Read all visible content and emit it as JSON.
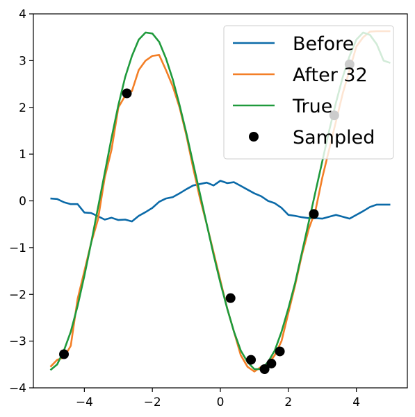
{
  "chart_data": {
    "type": "line",
    "xlim": [
      -5.5,
      5.5
    ],
    "ylim": [
      -4,
      4
    ],
    "xticks": [
      -4,
      -2,
      0,
      2,
      4
    ],
    "yticks": [
      -4,
      -3,
      -2,
      -1,
      0,
      1,
      2,
      3,
      4
    ],
    "xtick_labels": [
      "−4",
      "−2",
      "0",
      "2",
      "4"
    ],
    "ytick_labels": [
      "−4",
      "−3",
      "−2",
      "−1",
      "0",
      "1",
      "2",
      "3",
      "4"
    ],
    "legend_position": "upper-right",
    "grid": false,
    "series": [
      {
        "name": "Before",
        "color": "#0b6aa8",
        "kind": "line",
        "x": [
          -5.0,
          -4.8,
          -4.6,
          -4.4,
          -4.2,
          -4.0,
          -3.8,
          -3.6,
          -3.4,
          -3.2,
          -3.0,
          -2.8,
          -2.6,
          -2.4,
          -2.2,
          -2.0,
          -1.8,
          -1.6,
          -1.4,
          -1.2,
          -1.0,
          -0.8,
          -0.6,
          -0.4,
          -0.2,
          0.0,
          0.2,
          0.4,
          0.6,
          0.8,
          1.0,
          1.2,
          1.4,
          1.6,
          1.8,
          2.0,
          2.2,
          2.4,
          2.6,
          2.8,
          3.0,
          3.2,
          3.4,
          3.6,
          3.8,
          4.0,
          4.2,
          4.4,
          4.6,
          4.8,
          5.0
        ],
        "y": [
          0.05,
          0.04,
          -0.03,
          -0.07,
          -0.07,
          -0.25,
          -0.26,
          -0.33,
          -0.4,
          -0.36,
          -0.41,
          -0.4,
          -0.44,
          -0.32,
          -0.24,
          -0.15,
          -0.02,
          0.05,
          0.08,
          0.16,
          0.25,
          0.33,
          0.36,
          0.39,
          0.33,
          0.43,
          0.38,
          0.4,
          0.32,
          0.24,
          0.16,
          0.1,
          0.0,
          -0.05,
          -0.15,
          -0.3,
          -0.32,
          -0.35,
          -0.37,
          -0.37,
          -0.38,
          -0.34,
          -0.3,
          -0.34,
          -0.38,
          -0.3,
          -0.22,
          -0.13,
          -0.08,
          -0.08,
          -0.08
        ]
      },
      {
        "name": "After 32",
        "color": "#f37f27",
        "kind": "line",
        "x": [
          -5.0,
          -4.8,
          -4.6,
          -4.4,
          -4.2,
          -4.0,
          -3.8,
          -3.6,
          -3.4,
          -3.2,
          -3.0,
          -2.8,
          -2.6,
          -2.4,
          -2.2,
          -2.0,
          -1.8,
          -1.6,
          -1.4,
          -1.2,
          -1.0,
          -0.8,
          -0.6,
          -0.4,
          -0.2,
          0.0,
          0.2,
          0.4,
          0.6,
          0.8,
          1.0,
          1.2,
          1.4,
          1.6,
          1.8,
          2.0,
          2.2,
          2.4,
          2.6,
          2.8,
          3.0,
          3.2,
          3.4,
          3.6,
          3.8,
          4.0,
          4.2,
          4.4,
          4.6,
          4.8,
          5.0
        ],
        "y": [
          -3.55,
          -3.4,
          -3.35,
          -3.1,
          -2.1,
          -1.5,
          -0.9,
          -0.4,
          0.5,
          1.1,
          2.0,
          2.25,
          2.35,
          2.8,
          3.0,
          3.1,
          3.12,
          2.8,
          2.45,
          2.0,
          1.4,
          0.7,
          0.05,
          -0.5,
          -1.1,
          -1.7,
          -2.3,
          -2.8,
          -3.3,
          -3.55,
          -3.65,
          -3.55,
          -3.5,
          -3.3,
          -3.0,
          -2.4,
          -1.8,
          -1.15,
          -0.6,
          -0.2,
          0.5,
          1.1,
          1.7,
          2.3,
          2.8,
          3.3,
          3.5,
          3.62,
          3.63,
          3.63,
          3.63
        ]
      },
      {
        "name": "True",
        "color": "#1f9a3c",
        "kind": "line",
        "x": [
          -5.0,
          -4.8,
          -4.6,
          -4.4,
          -4.2,
          -4.0,
          -3.8,
          -3.6,
          -3.4,
          -3.2,
          -3.0,
          -2.8,
          -2.6,
          -2.4,
          -2.2,
          -2.0,
          -1.8,
          -1.6,
          -1.4,
          -1.2,
          -1.0,
          -0.8,
          -0.6,
          -0.4,
          -0.2,
          0.0,
          0.2,
          0.4,
          0.6,
          0.8,
          1.0,
          1.2,
          1.4,
          1.6,
          1.8,
          2.0,
          2.2,
          2.4,
          2.6,
          2.8,
          3.0,
          3.2,
          3.4,
          3.6,
          3.8,
          4.0,
          4.2,
          4.4,
          4.6,
          4.8,
          5.0
        ],
        "y": [
          -3.62,
          -3.5,
          -3.2,
          -2.8,
          -2.25,
          -1.6,
          -0.9,
          -0.15,
          0.6,
          1.35,
          2.05,
          2.65,
          3.1,
          3.45,
          3.6,
          3.58,
          3.4,
          3.05,
          2.6,
          2.05,
          1.45,
          0.8,
          0.15,
          -0.5,
          -1.15,
          -1.75,
          -2.3,
          -2.8,
          -3.2,
          -3.45,
          -3.6,
          -3.6,
          -3.45,
          -3.2,
          -2.8,
          -2.3,
          -1.75,
          -1.1,
          -0.45,
          0.2,
          0.85,
          1.5,
          2.1,
          2.65,
          3.1,
          3.45,
          3.6,
          3.55,
          3.35,
          3.0,
          2.95
        ]
      },
      {
        "name": "Sampled",
        "color": "#000000",
        "kind": "points",
        "x": [
          -4.6,
          -2.75,
          0.3,
          0.9,
          1.3,
          1.5,
          1.75,
          2.75,
          3.35,
          3.8
        ],
        "y": [
          -3.28,
          2.3,
          -2.08,
          -3.4,
          -3.6,
          -3.48,
          -3.22,
          -0.28,
          1.83,
          2.92
        ]
      }
    ]
  }
}
